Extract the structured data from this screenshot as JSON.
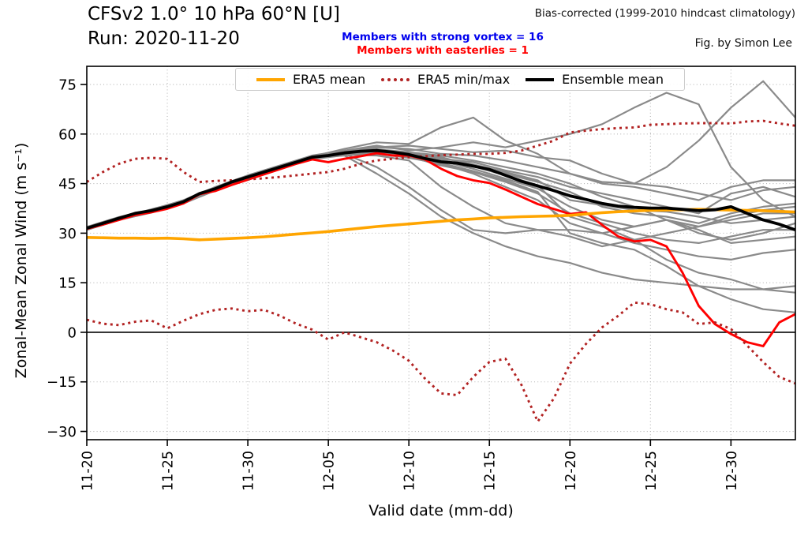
{
  "header": {
    "title": "CFSv2 1.0° 10 hPa 60°N [U]",
    "run_label": "Run: 2020-11-20",
    "bias_note": "Bias-corrected (1999-2010 hindcast climatology)",
    "credit": "Fig. by Simon Lee",
    "strong_vortex_note": "Members with strong vortex = 16",
    "easterlies_note": "Members with easterlies = 1",
    "strong_vortex_color": "#0000ee",
    "easterlies_color": "#ff0000"
  },
  "chart_data": {
    "type": "line",
    "xlabel": "Valid date (mm-dd)",
    "ylabel": "Zonal-Mean Zonal Wind (m s⁻¹)",
    "x_unit": "days since 2020-11-20",
    "xlim": [
      0,
      44
    ],
    "ylim": [
      -32.5,
      80.5
    ],
    "yticks": [
      75,
      60,
      45,
      30,
      15,
      0,
      -15,
      -30
    ],
    "xtick_days": [
      0,
      5,
      10,
      15,
      20,
      25,
      30,
      35,
      40
    ],
    "xtick_labels": [
      "11-20",
      "11-25",
      "11-30",
      "12-05",
      "12-10",
      "12-15",
      "12-20",
      "12-25",
      "12-30"
    ],
    "grid": true,
    "zero_line": 0,
    "colors": {
      "members": "#8a8a8a",
      "ensemble_mean": "#000000",
      "easterly_member": "#ff0000",
      "era5_mean": "#ffa500",
      "era5_minmax": "#b22222",
      "grid": "#b5b5b5",
      "spine": "#000000"
    },
    "legend": {
      "position": "upper center",
      "entries": [
        {
          "label": "ERA5 mean",
          "color": "#ffa500",
          "style": "solid"
        },
        {
          "label": "ERA5 min/max",
          "color": "#b22222",
          "style": "dotted"
        },
        {
          "label": "Ensemble mean",
          "color": "#000000",
          "style": "solid"
        }
      ]
    },
    "series": {
      "era5_mean": {
        "name": "ERA5 mean",
        "style": "solid",
        "width": 3.6,
        "x_step": 1,
        "values": [
          28.7,
          28.6,
          28.5,
          28.5,
          28.4,
          28.5,
          28.3,
          28.0,
          28.2,
          28.4,
          28.6,
          28.9,
          29.3,
          29.7,
          30.1,
          30.5,
          31.0,
          31.5,
          32.0,
          32.4,
          32.8,
          33.2,
          33.6,
          34.0,
          34.3,
          34.6,
          34.8,
          35.0,
          35.1,
          35.2,
          35.4,
          35.8,
          36.2,
          36.5,
          36.7,
          36.9,
          37.0,
          37.1,
          37.2,
          37.1,
          37.0,
          36.9,
          36.8,
          36.6,
          36.4
        ]
      },
      "era5_max": {
        "name": "ERA5 max",
        "style": "dotted",
        "width": 2.9,
        "x_step": 1,
        "values": [
          45.5,
          48.5,
          51.0,
          52.5,
          52.8,
          52.5,
          48.5,
          45.5,
          45.8,
          46.0,
          46.3,
          46.6,
          47.0,
          47.5,
          48.0,
          48.5,
          49.5,
          51.0,
          52.0,
          52.5,
          53.0,
          53.3,
          53.6,
          53.8,
          54.0,
          54.0,
          54.3,
          55.0,
          56.5,
          58.0,
          60.5,
          61.0,
          61.5,
          61.8,
          62.0,
          62.8,
          63.0,
          63.2,
          63.3,
          63.3,
          63.2,
          63.8,
          64.0,
          63.2,
          62.5
        ]
      },
      "era5_min": {
        "name": "ERA5 min",
        "style": "dotted",
        "width": 2.9,
        "x_step": 1,
        "values": [
          3.8,
          2.6,
          2.2,
          3.2,
          3.6,
          1.2,
          3.5,
          5.5,
          6.8,
          7.2,
          6.4,
          6.8,
          5.0,
          2.6,
          0.8,
          -2.2,
          0.0,
          -1.5,
          -3.0,
          -5.5,
          -8.6,
          -14.0,
          -18.5,
          -19.0,
          -13.5,
          -9.0,
          -8.0,
          -16.0,
          -27.0,
          -20.0,
          -9.5,
          -3.5,
          1.5,
          5.0,
          9.0,
          8.5,
          7.0,
          6.0,
          2.5,
          3.0,
          1.0,
          -4.0,
          -9.0,
          -13.5,
          -15.5
        ]
      },
      "ensemble_mean": {
        "name": "Ensemble mean",
        "style": "solid",
        "width": 3.8,
        "x_step": 1,
        "values": [
          31.5,
          33.0,
          34.5,
          36.0,
          36.8,
          38.0,
          39.5,
          42.0,
          43.5,
          45.5,
          47.0,
          48.5,
          50.0,
          51.5,
          53.0,
          53.5,
          54.3,
          54.8,
          55.0,
          54.5,
          53.8,
          52.6,
          51.6,
          51.2,
          50.3,
          49.3,
          47.5,
          45.7,
          44.3,
          42.9,
          41.3,
          40.2,
          39.0,
          38.2,
          37.8,
          37.6,
          37.6,
          37.2,
          36.8,
          37.1,
          38.0,
          36.0,
          34.0,
          32.7,
          31.0
        ]
      },
      "easterly_member": {
        "name": "Member with easterlies",
        "style": "solid",
        "width": 2.9,
        "x_step": 1,
        "values": [
          31.3,
          32.6,
          34.0,
          35.5,
          36.3,
          37.4,
          39.0,
          41.8,
          42.8,
          44.6,
          46.2,
          47.8,
          49.4,
          51.0,
          52.3,
          51.5,
          52.5,
          53.3,
          54.2,
          53.5,
          53.5,
          52.3,
          49.5,
          47.3,
          46.0,
          45.2,
          43.2,
          41.0,
          38.8,
          37.3,
          35.8,
          36.3,
          32.5,
          29.0,
          27.5,
          28.0,
          26.0,
          18.0,
          8.0,
          2.5,
          -0.5,
          -3.0,
          -4.2,
          3.0,
          5.5
        ]
      },
      "members": {
        "name": "CFSv2 ensemble members",
        "style": "solid",
        "width": 2.2,
        "x_step": 2,
        "count": 16,
        "values": [
          [
            31.0,
            34.0,
            36.2,
            39.0,
            43.0,
            46.5,
            49.5,
            52.5,
            54.5,
            56.0,
            55.5,
            54.0,
            53.5,
            52.0,
            50.0,
            48.0,
            45.5,
            45.0,
            50.0,
            58.0,
            68.0,
            76.0,
            65.0
          ],
          [
            31.8,
            34.8,
            37.0,
            40.0,
            44.0,
            47.5,
            50.5,
            53.5,
            55.0,
            56.5,
            55.0,
            56.0,
            57.5,
            56.0,
            58.0,
            60.0,
            63.0,
            68.0,
            72.5,
            69.0,
            50.0,
            40.0,
            35.0
          ],
          [
            31.2,
            34.2,
            36.5,
            39.2,
            43.2,
            46.8,
            49.8,
            53.2,
            55.5,
            57.5,
            57.0,
            62.0,
            65.0,
            58.0,
            54.0,
            48.0,
            45.0,
            44.0,
            42.0,
            40.0,
            44.0,
            46.0,
            46.0
          ],
          [
            31.6,
            34.6,
            37.2,
            39.8,
            44.0,
            47.3,
            50.3,
            53.3,
            54.8,
            56.0,
            56.5,
            55.5,
            54.5,
            55.0,
            53.0,
            52.0,
            48.0,
            45.0,
            44.0,
            42.0,
            40.0,
            43.0,
            44.0
          ],
          [
            31.4,
            34.4,
            36.6,
            39.4,
            43.4,
            46.9,
            49.7,
            52.8,
            54.0,
            54.5,
            53.5,
            52.5,
            51.5,
            49.0,
            47.0,
            44.0,
            42.0,
            40.0,
            38.0,
            36.0,
            42.0,
            44.0,
            41.0
          ],
          [
            31.7,
            34.7,
            37.0,
            39.6,
            43.6,
            47.1,
            50.1,
            53.1,
            54.2,
            54.8,
            54.0,
            53.0,
            50.5,
            48.0,
            45.5,
            42.5,
            38.0,
            36.0,
            35.0,
            33.0,
            36.0,
            38.0,
            39.0
          ],
          [
            31.1,
            34.1,
            36.4,
            39.1,
            43.1,
            46.6,
            49.6,
            52.6,
            53.8,
            53.5,
            52.0,
            44.0,
            38.0,
            33.0,
            31.0,
            31.0,
            30.0,
            32.0,
            34.0,
            32.0,
            35.0,
            37.0,
            38.0
          ],
          [
            31.3,
            34.3,
            36.7,
            39.3,
            43.3,
            46.7,
            49.9,
            52.9,
            54.0,
            50.0,
            44.0,
            37.0,
            31.0,
            30.0,
            31.0,
            29.0,
            26.0,
            28.0,
            30.0,
            32.0,
            34.0,
            36.0,
            36.0
          ],
          [
            31.9,
            34.9,
            37.1,
            39.9,
            43.9,
            47.4,
            50.4,
            53.4,
            54.6,
            55.2,
            54.2,
            52.8,
            50.8,
            48.5,
            46.0,
            40.0,
            38.5,
            37.0,
            36.5,
            35.0,
            33.0,
            34.0,
            35.0
          ],
          [
            31.5,
            34.5,
            36.9,
            39.5,
            43.5,
            47.0,
            50.0,
            53.0,
            54.4,
            54.6,
            53.6,
            51.8,
            49.5,
            46.5,
            43.5,
            38.0,
            34.0,
            32.0,
            34.0,
            30.0,
            28.0,
            30.0,
            33.0
          ],
          [
            31.2,
            34.2,
            36.5,
            39.2,
            43.2,
            46.8,
            49.8,
            52.7,
            54.1,
            54.3,
            53.2,
            50.5,
            48.5,
            45.5,
            42.0,
            36.0,
            33.0,
            30.0,
            28.0,
            27.0,
            29.0,
            31.0,
            31.0
          ],
          [
            31.6,
            34.6,
            36.8,
            39.6,
            43.6,
            47.2,
            50.2,
            53.2,
            54.7,
            55.4,
            54.5,
            53.5,
            52.0,
            50.0,
            48.0,
            45.0,
            41.0,
            38.0,
            34.0,
            31.0,
            27.0,
            28.0,
            29.0
          ],
          [
            31.0,
            34.0,
            36.3,
            39.0,
            43.0,
            46.5,
            49.5,
            52.4,
            53.6,
            54.0,
            52.8,
            51.0,
            48.0,
            44.0,
            40.0,
            33.0,
            30.0,
            27.0,
            25.0,
            23.0,
            22.0,
            24.0,
            25.0
          ],
          [
            31.4,
            34.4,
            36.6,
            39.4,
            43.4,
            46.9,
            49.9,
            52.8,
            53.5,
            48.0,
            42.0,
            35.0,
            30.0,
            26.0,
            23.0,
            21.0,
            18.0,
            16.0,
            15.0,
            14.0,
            13.0,
            13.0,
            14.0
          ],
          [
            31.8,
            34.8,
            37.1,
            39.7,
            43.7,
            47.2,
            50.2,
            53.1,
            54.3,
            54.9,
            53.9,
            52.2,
            50.2,
            47.5,
            44.5,
            35.0,
            32.0,
            28.0,
            22.0,
            18.0,
            16.0,
            13.0,
            12.0
          ],
          [
            31.1,
            34.1,
            36.4,
            39.2,
            43.2,
            46.6,
            49.6,
            52.5,
            53.7,
            54.1,
            53.0,
            51.2,
            48.8,
            46.0,
            42.5,
            30.0,
            27.0,
            25.0,
            20.0,
            14.0,
            10.0,
            7.0,
            6.0
          ]
        ]
      }
    }
  }
}
